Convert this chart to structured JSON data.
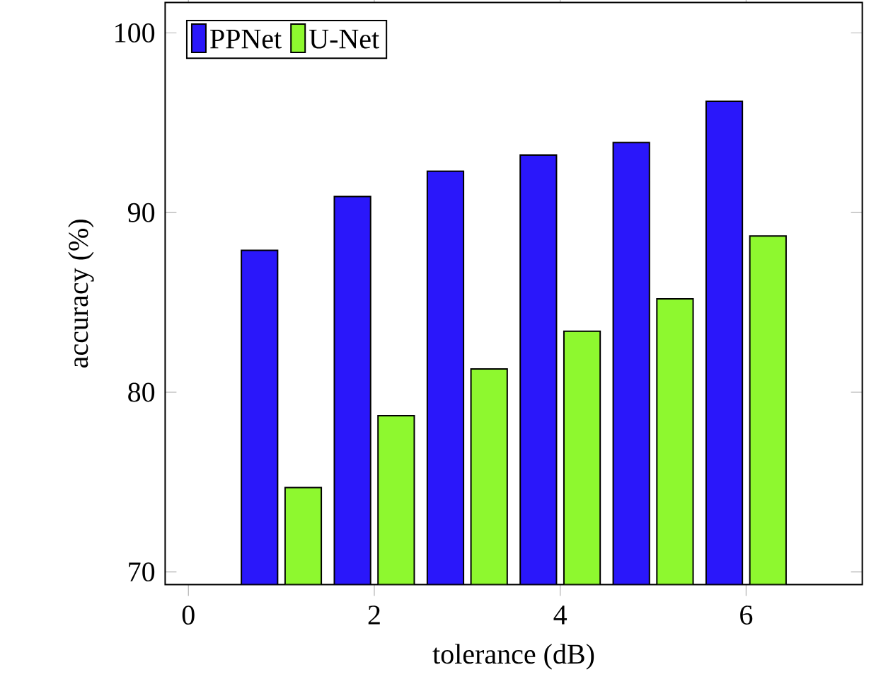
{
  "chart_data": {
    "type": "bar",
    "xlabel": "tolerance (dB)",
    "ylabel": "accuracy (%)",
    "x": [
      1,
      2,
      3,
      4,
      5,
      6
    ],
    "series": [
      {
        "name": "PPNet",
        "color": "#2a17fa",
        "values": [
          87.9,
          90.9,
          92.3,
          93.2,
          93.9,
          96.2
        ]
      },
      {
        "name": "U-Net",
        "color": "#8ef82f",
        "values": [
          74.7,
          78.7,
          81.3,
          83.4,
          85.2,
          88.7
        ]
      }
    ],
    "xlim": [
      -0.25,
      7.25
    ],
    "ylim": [
      69.3,
      101.7
    ],
    "xticks": [
      0,
      2,
      4,
      6
    ],
    "yticks": [
      70,
      80,
      90,
      100
    ],
    "grid": false,
    "legend": "top left"
  }
}
